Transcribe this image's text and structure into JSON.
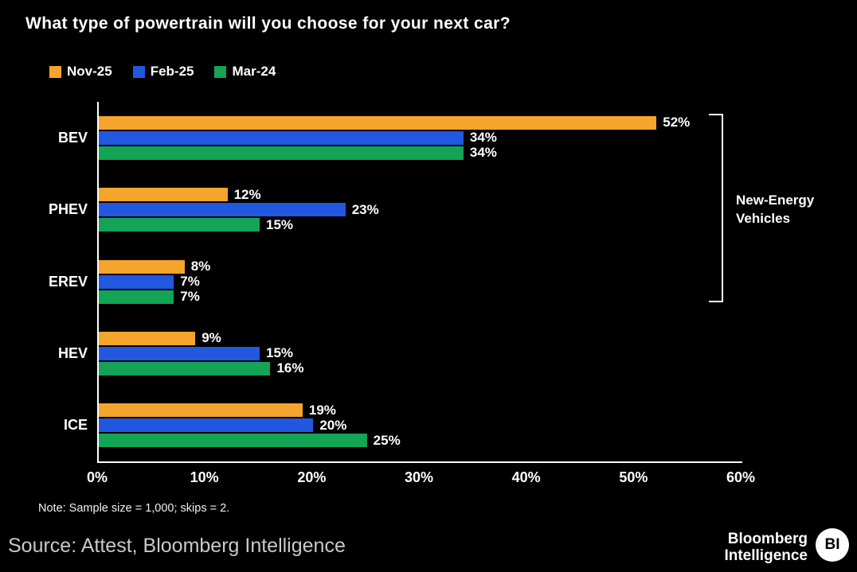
{
  "title": "What type of powertrain will you choose for your next car?",
  "chart_data": {
    "type": "bar",
    "orientation": "horizontal",
    "title": "What type of powertrain will you choose for your next car?",
    "categories": [
      "BEV",
      "PHEV",
      "EREV",
      "HEV",
      "ICE"
    ],
    "series": [
      {
        "name": "Nov-25",
        "color": "#f5a42c",
        "values": [
          52,
          12,
          8,
          9,
          19
        ]
      },
      {
        "name": "Feb-25",
        "color": "#2257e0",
        "values": [
          34,
          23,
          7,
          15,
          20
        ]
      },
      {
        "name": "Mar-24",
        "color": "#13a456",
        "values": [
          34,
          15,
          7,
          16,
          25
        ]
      }
    ],
    "value_suffix": "%",
    "xlim": [
      0,
      60
    ],
    "x_ticks": [
      "0%",
      "10%",
      "20%",
      "30%",
      "40%",
      "50%",
      "60%"
    ],
    "grid": false,
    "legend_position": "top-left",
    "annotation": {
      "label": "New-Energy Vehicles",
      "span_categories": [
        "BEV",
        "PHEV",
        "EREV"
      ]
    }
  },
  "note": "Note: Sample size = 1,000; skips = 2.",
  "source": "Source: Attest, Bloomberg Intelligence",
  "brand": {
    "line1": "Bloomberg",
    "line2": "Intelligence",
    "badge": "BI"
  }
}
